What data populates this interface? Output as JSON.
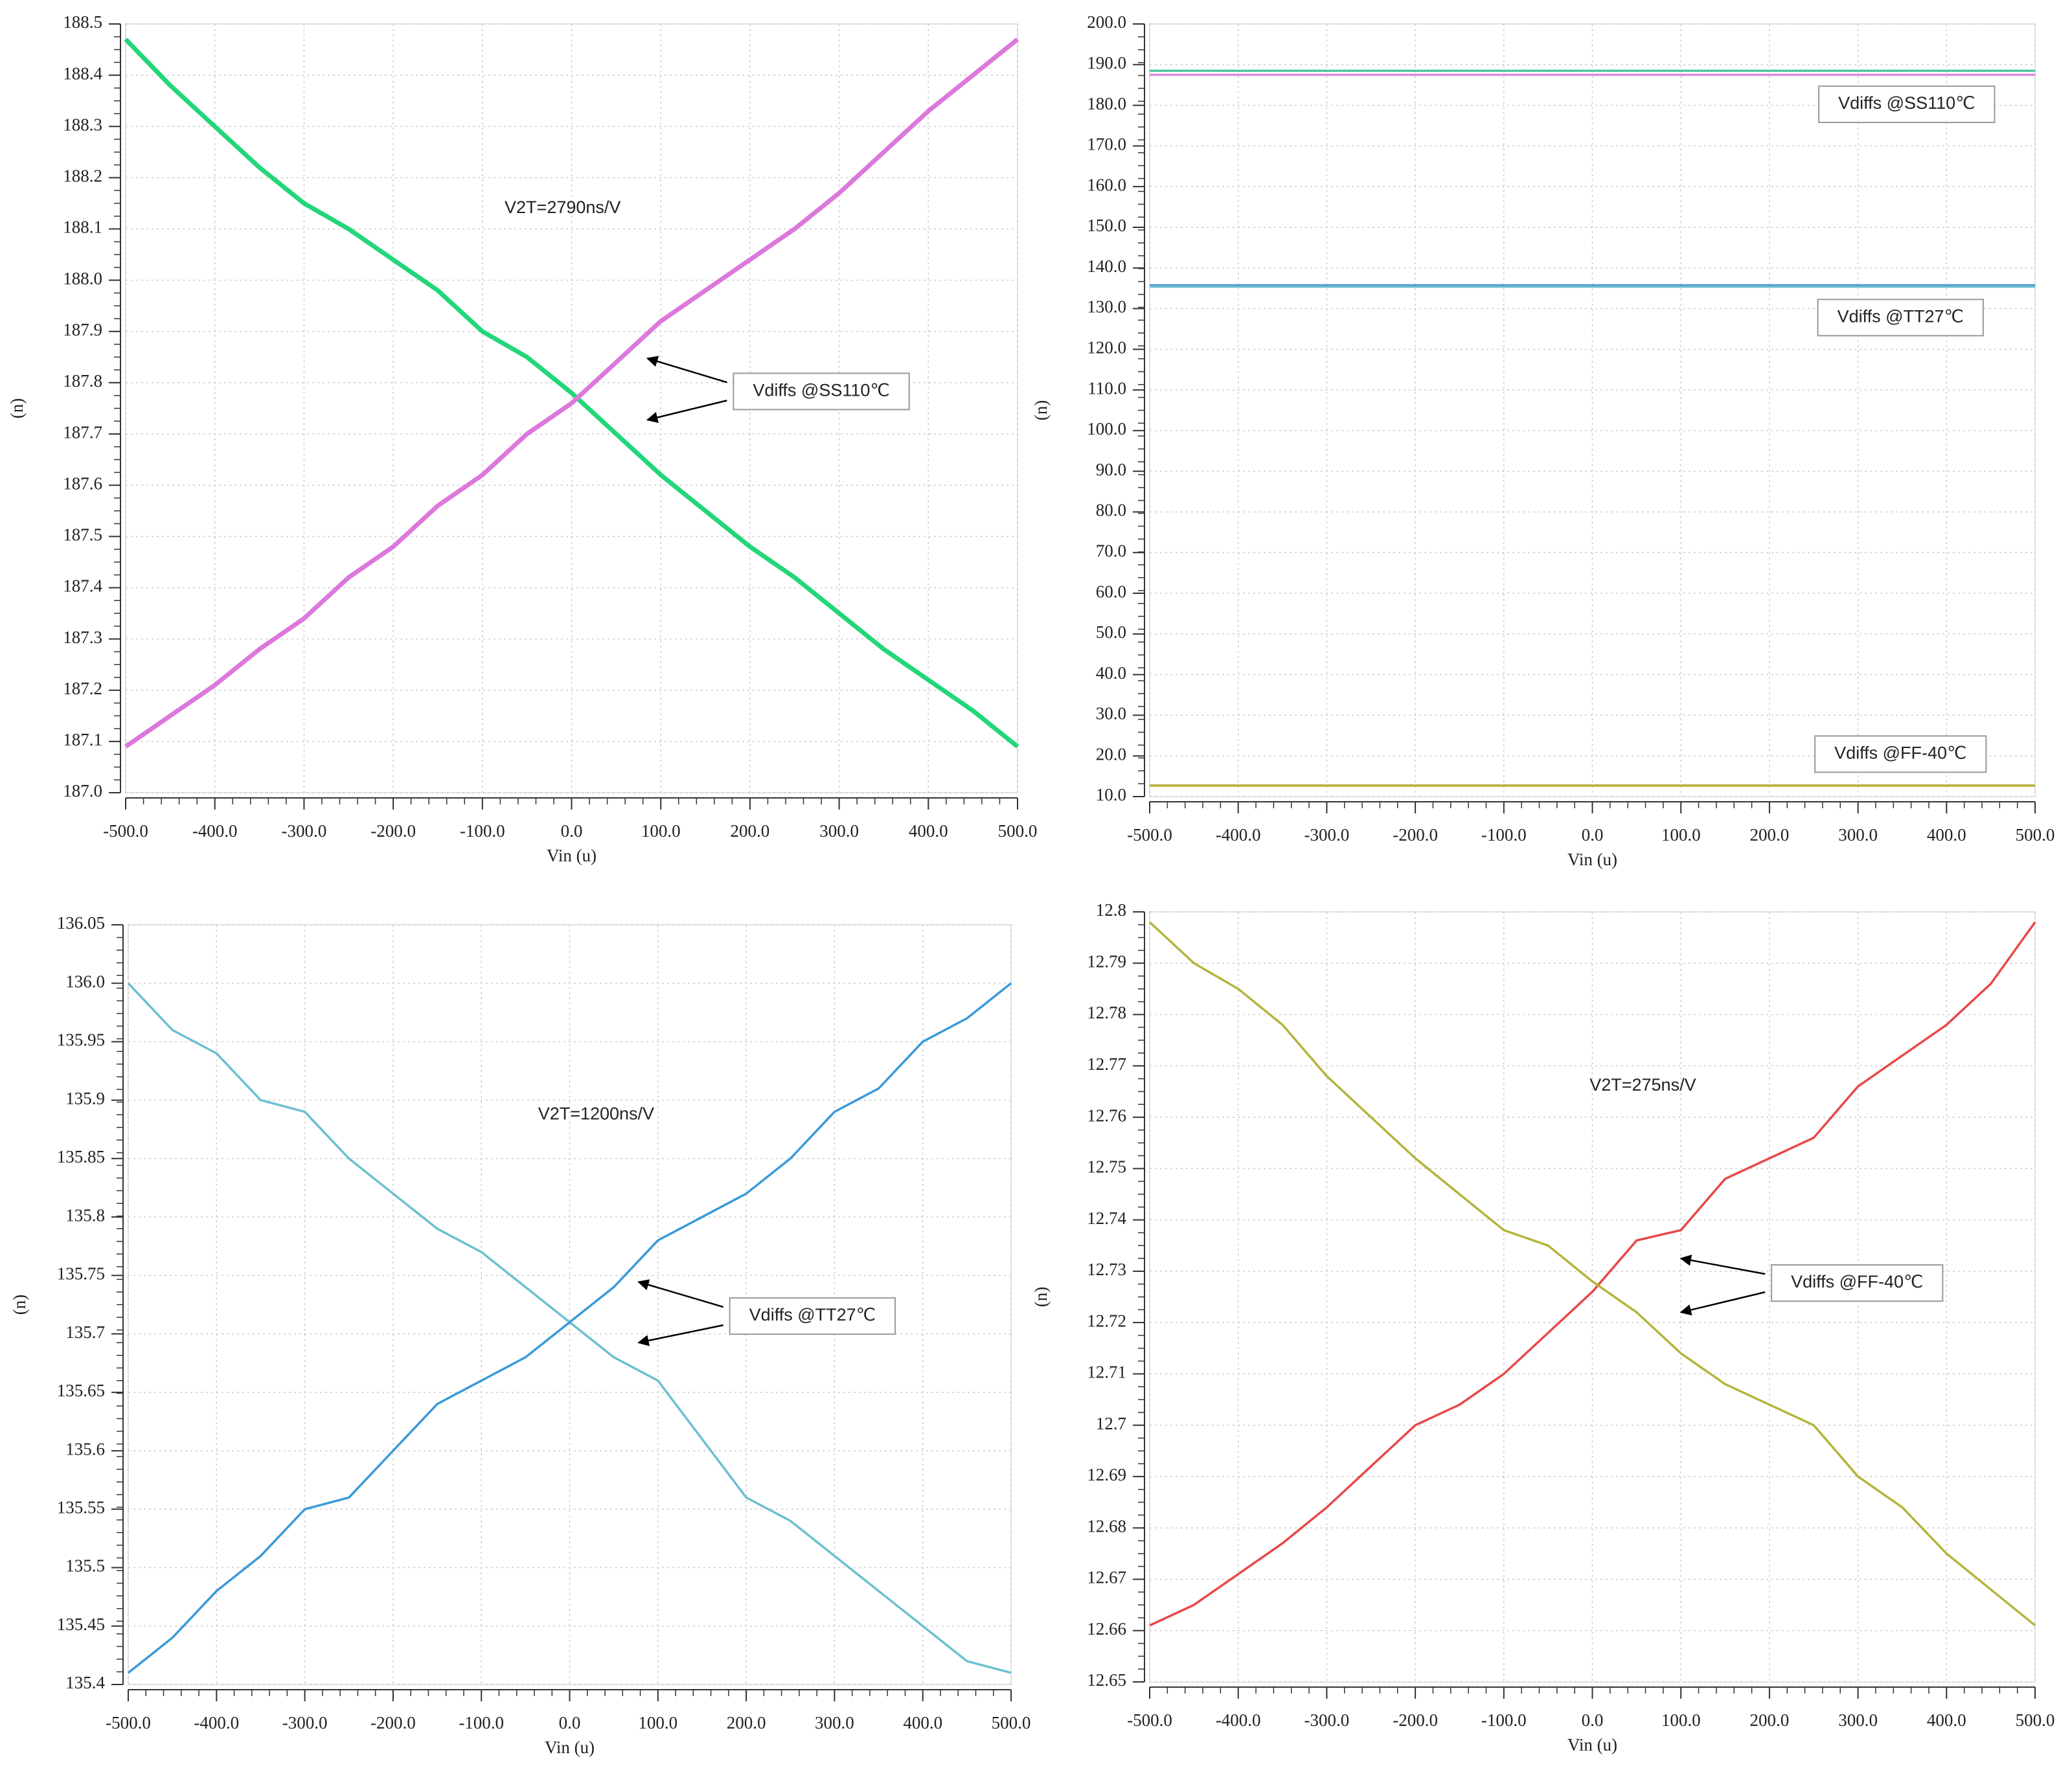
{
  "chart_data": [
    {
      "type": "line",
      "xlabel": "Vin (u)",
      "ylabel": "(n)",
      "grid": true,
      "annotations": [
        "V2T=2790ns/V",
        "Vdiffs @SS110℃"
      ],
      "x": [
        -500,
        -450,
        -400,
        -350,
        -300,
        -250,
        -200,
        -150,
        -100,
        -50,
        0,
        50,
        100,
        150,
        200,
        250,
        300,
        350,
        400,
        450,
        500
      ],
      "series": [
        {
          "color": "#22d67a",
          "values": [
            188.47,
            188.38,
            188.3,
            188.22,
            188.15,
            188.1,
            188.04,
            187.98,
            187.9,
            187.85,
            187.78,
            187.7,
            187.62,
            187.55,
            187.48,
            187.42,
            187.35,
            187.28,
            187.22,
            187.16,
            187.09
          ]
        },
        {
          "color": "#dc78dc",
          "values": [
            187.09,
            187.15,
            187.21,
            187.28,
            187.34,
            187.42,
            187.48,
            187.56,
            187.62,
            187.7,
            187.76,
            187.84,
            187.92,
            187.98,
            188.04,
            188.1,
            188.17,
            188.25,
            188.33,
            188.4,
            188.47
          ]
        }
      ],
      "xlim": [
        -500,
        500
      ],
      "xticks": [
        {
          "value": -500,
          "label": "-500.0"
        },
        {
          "value": -400,
          "label": "-400.0"
        },
        {
          "value": -300,
          "label": "-300.0"
        },
        {
          "value": -200,
          "label": "-200.0"
        },
        {
          "value": -100,
          "label": "-100.0"
        },
        {
          "value": 0,
          "label": "0.0"
        },
        {
          "value": 100,
          "label": "100.0"
        },
        {
          "value": 200,
          "label": "200.0"
        },
        {
          "value": 300,
          "label": "300.0"
        },
        {
          "value": 400,
          "label": "400.0"
        },
        {
          "value": 500,
          "label": "500.0"
        }
      ],
      "ylim": [
        187.0,
        188.5
      ],
      "yticks": [
        {
          "value": 187.0,
          "label": "187.0"
        },
        187.1,
        187.2,
        187.3,
        187.4,
        187.5,
        187.6,
        187.7,
        187.8,
        187.9,
        {
          "value": 188.0,
          "label": "188.0"
        },
        188.1,
        188.2,
        188.3,
        188.4,
        188.5
      ]
    },
    {
      "type": "line",
      "xlabel": "Vin (u)",
      "ylabel": "(n)",
      "grid": true,
      "annotations": [
        "Vdiffs @SS110℃",
        "Vdiffs @TT27℃",
        "Vdiffs @FF-40℃"
      ],
      "x": [
        -500,
        500
      ],
      "series": [
        {
          "color": "#4cc8a0",
          "values": [
            188.5,
            188.5
          ]
        },
        {
          "color": "#e08ae0",
          "values": [
            187.5,
            187.5
          ]
        },
        {
          "color": "#3a8fd0",
          "values": [
            135.7,
            135.7
          ]
        },
        {
          "color": "#6cc0d0",
          "values": [
            135.4,
            135.4
          ]
        },
        {
          "color": "#e0602a",
          "values": [
            12.7,
            12.7
          ]
        },
        {
          "color": "#b8b840",
          "values": [
            12.72,
            12.72
          ]
        }
      ],
      "xlim": [
        -500,
        500
      ],
      "xticks": [
        {
          "value": -500,
          "label": "-500.0"
        },
        {
          "value": -400,
          "label": "-400.0"
        },
        {
          "value": -300,
          "label": "-300.0"
        },
        {
          "value": -200,
          "label": "-200.0"
        },
        {
          "value": -100,
          "label": "-100.0"
        },
        {
          "value": 0,
          "label": "0.0"
        },
        {
          "value": 100,
          "label": "100.0"
        },
        {
          "value": 200,
          "label": "200.0"
        },
        {
          "value": 300,
          "label": "300.0"
        },
        {
          "value": 400,
          "label": "400.0"
        },
        {
          "value": 500,
          "label": "500.0"
        }
      ],
      "ylim": [
        10.0,
        200.0
      ],
      "yticks": [
        {
          "value": 10,
          "label": "10.0"
        },
        {
          "value": 20,
          "label": "20.0"
        },
        {
          "value": 30,
          "label": "30.0"
        },
        {
          "value": 40,
          "label": "40.0"
        },
        {
          "value": 50,
          "label": "50.0"
        },
        {
          "value": 60,
          "label": "60.0"
        },
        {
          "value": 70,
          "label": "70.0"
        },
        {
          "value": 80,
          "label": "80.0"
        },
        {
          "value": 90,
          "label": "90.0"
        },
        {
          "value": 100,
          "label": "100.0"
        },
        {
          "value": 110,
          "label": "110.0"
        },
        {
          "value": 120,
          "label": "120.0"
        },
        {
          "value": 130,
          "label": "130.0"
        },
        {
          "value": 140,
          "label": "140.0"
        },
        {
          "value": 150,
          "label": "150.0"
        },
        {
          "value": 160,
          "label": "160.0"
        },
        {
          "value": 170,
          "label": "170.0"
        },
        {
          "value": 180,
          "label": "180.0"
        },
        {
          "value": 190,
          "label": "190.0"
        },
        {
          "value": 200,
          "label": "200.0"
        }
      ]
    },
    {
      "type": "line",
      "xlabel": "Vin (u)",
      "ylabel": "(n)",
      "grid": true,
      "annotations": [
        "V2T=1200ns/V",
        "Vdiffs @TT27℃"
      ],
      "x": [
        -500,
        -450,
        -400,
        -350,
        -300,
        -250,
        -200,
        -150,
        -100,
        -50,
        0,
        50,
        100,
        150,
        200,
        250,
        300,
        350,
        400,
        450,
        500
      ],
      "series": [
        {
          "color": "#6cc0d0",
          "values": [
            136.0,
            135.96,
            135.94,
            135.9,
            135.89,
            135.85,
            135.82,
            135.79,
            135.77,
            135.74,
            135.71,
            135.68,
            135.66,
            135.61,
            135.56,
            135.54,
            135.51,
            135.48,
            135.45,
            135.42,
            135.41
          ]
        },
        {
          "color": "#3a9ad8",
          "values": [
            135.41,
            135.44,
            135.48,
            135.51,
            135.55,
            135.56,
            135.6,
            135.64,
            135.66,
            135.68,
            135.71,
            135.74,
            135.78,
            135.8,
            135.82,
            135.85,
            135.89,
            135.91,
            135.95,
            135.97,
            136.0
          ]
        }
      ],
      "xlim": [
        -500,
        500
      ],
      "xticks": [
        {
          "value": -500,
          "label": "-500.0"
        },
        {
          "value": -400,
          "label": "-400.0"
        },
        {
          "value": -300,
          "label": "-300.0"
        },
        {
          "value": -200,
          "label": "-200.0"
        },
        {
          "value": -100,
          "label": "-100.0"
        },
        {
          "value": 0,
          "label": "0.0"
        },
        {
          "value": 100,
          "label": "100.0"
        },
        {
          "value": 200,
          "label": "200.0"
        },
        {
          "value": 300,
          "label": "300.0"
        },
        {
          "value": 400,
          "label": "400.0"
        },
        {
          "value": 500,
          "label": "500.0"
        }
      ],
      "ylim": [
        135.4,
        136.05
      ],
      "yticks": [
        135.4,
        135.45,
        135.5,
        135.55,
        135.6,
        135.65,
        135.7,
        135.75,
        135.8,
        135.85,
        135.9,
        135.95,
        {
          "value": 136.0,
          "label": "136.0"
        },
        136.05
      ]
    },
    {
      "type": "line",
      "xlabel": "Vin (u)",
      "ylabel": "(n)",
      "grid": true,
      "annotations": [
        "V2T=275ns/V",
        "Vdiffs @FF-40℃"
      ],
      "x": [
        -500,
        -450,
        -400,
        -350,
        -300,
        -250,
        -200,
        -150,
        -100,
        -50,
        0,
        50,
        100,
        150,
        200,
        250,
        300,
        350,
        400,
        450,
        500
      ],
      "series": [
        {
          "color": "#e84848",
          "values": [
            12.661,
            12.665,
            12.671,
            12.677,
            12.684,
            12.692,
            12.7,
            12.704,
            12.71,
            12.718,
            12.726,
            12.736,
            12.738,
            12.748,
            12.752,
            12.756,
            12.766,
            12.772,
            12.778,
            12.786,
            12.798
          ]
        },
        {
          "color": "#b4b43c",
          "values": [
            12.798,
            12.79,
            12.785,
            12.778,
            12.768,
            12.76,
            12.752,
            12.745,
            12.738,
            12.735,
            12.728,
            12.722,
            12.714,
            12.708,
            12.704,
            12.7,
            12.69,
            12.684,
            12.675,
            12.668,
            12.661
          ]
        }
      ],
      "xlim": [
        -500,
        500
      ],
      "xticks": [
        {
          "value": -500,
          "label": "-500.0"
        },
        {
          "value": -400,
          "label": "-400.0"
        },
        {
          "value": -300,
          "label": "-300.0"
        },
        {
          "value": -200,
          "label": "-200.0"
        },
        {
          "value": -100,
          "label": "-100.0"
        },
        {
          "value": 0,
          "label": "0.0"
        },
        {
          "value": 100,
          "label": "100.0"
        },
        {
          "value": 200,
          "label": "200.0"
        },
        {
          "value": 300,
          "label": "300.0"
        },
        {
          "value": 400,
          "label": "400.0"
        },
        {
          "value": 500,
          "label": "500.0"
        }
      ],
      "ylim": [
        12.65,
        12.8
      ],
      "yticks": [
        12.65,
        12.66,
        12.67,
        12.68,
        12.69,
        12.7,
        12.71,
        12.72,
        12.73,
        12.74,
        12.75,
        12.76,
        12.77,
        12.78,
        12.79,
        12.8
      ]
    }
  ]
}
